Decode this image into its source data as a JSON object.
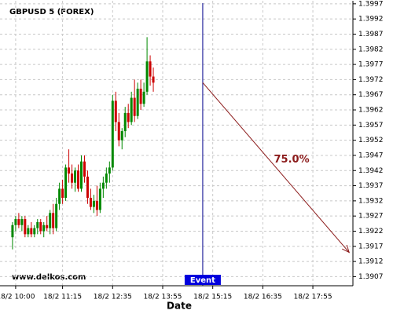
{
  "chart_data": {
    "type": "candlestick",
    "title": "GBPUSD 5 (FOREX)",
    "x_label": "Date",
    "watermark": "www.delkos.com",
    "up_color": "#008800",
    "down_color": "#cc0000",
    "grid": true,
    "x": [
      -5,
      0,
      5,
      10,
      15,
      20,
      25,
      30,
      35,
      40,
      45,
      50,
      55,
      60,
      65,
      70,
      75,
      80,
      85,
      90,
      95,
      100,
      105,
      110,
      115,
      120,
      125,
      130,
      135,
      140,
      145,
      150,
      155,
      160,
      165,
      170,
      175,
      180,
      185,
      190,
      195,
      200,
      205,
      210,
      215,
      220
    ],
    "open": [
      1.392,
      1.3924,
      1.3926,
      1.3924,
      1.3926,
      1.3921,
      1.3923,
      1.3921,
      1.3923,
      1.3925,
      1.3922,
      1.3924,
      1.3923,
      1.3928,
      1.3923,
      1.3931,
      1.3936,
      1.3933,
      1.3943,
      1.3941,
      1.3938,
      1.3942,
      1.3936,
      1.3945,
      1.394,
      1.3933,
      1.393,
      1.3932,
      1.3929,
      1.3936,
      1.3938,
      1.3941,
      1.3943,
      1.3965,
      1.3958,
      1.3952,
      1.3955,
      1.3961,
      1.3958,
      1.3966,
      1.396,
      1.3969,
      1.3964,
      1.3968,
      1.3978,
      1.3973
    ],
    "high": [
      1.3925,
      1.3927,
      1.3928,
      1.3927,
      1.3927,
      1.3924,
      1.3925,
      1.3924,
      1.3926,
      1.3926,
      1.3925,
      1.3927,
      1.3929,
      1.3931,
      1.3933,
      1.3938,
      1.3939,
      1.3944,
      1.3949,
      1.3944,
      1.3943,
      1.3944,
      1.3947,
      1.3947,
      1.3942,
      1.3936,
      1.3934,
      1.3937,
      1.3938,
      1.394,
      1.3943,
      1.3945,
      1.3967,
      1.3968,
      1.3961,
      1.3956,
      1.3963,
      1.3964,
      1.3968,
      1.3972,
      1.3971,
      1.3972,
      1.3971,
      1.3986,
      1.398,
      1.3976
    ],
    "low": [
      1.3916,
      1.3922,
      1.3923,
      1.3922,
      1.392,
      1.392,
      1.392,
      1.392,
      1.3921,
      1.3921,
      1.392,
      1.3922,
      1.3921,
      1.3921,
      1.3922,
      1.3929,
      1.3931,
      1.3932,
      1.3938,
      1.3936,
      1.3935,
      1.3935,
      1.3935,
      1.3938,
      1.3931,
      1.3929,
      1.3928,
      1.3927,
      1.3928,
      1.3933,
      1.3936,
      1.3938,
      1.3942,
      1.3955,
      1.395,
      1.3949,
      1.3953,
      1.3956,
      1.3957,
      1.3958,
      1.3959,
      1.3962,
      1.3963,
      1.3967,
      1.397,
      1.3968
    ],
    "close": [
      1.3924,
      1.3926,
      1.3924,
      1.3926,
      1.3921,
      1.3923,
      1.3921,
      1.3923,
      1.3925,
      1.3922,
      1.3924,
      1.3923,
      1.3928,
      1.3923,
      1.3931,
      1.3936,
      1.3933,
      1.3943,
      1.3941,
      1.3938,
      1.3942,
      1.3936,
      1.3945,
      1.394,
      1.3933,
      1.393,
      1.3932,
      1.3929,
      1.3936,
      1.3938,
      1.3941,
      1.3943,
      1.3965,
      1.3958,
      1.3952,
      1.3955,
      1.3961,
      1.3958,
      1.3966,
      1.396,
      1.3969,
      1.3964,
      1.3968,
      1.3978,
      1.3973,
      1.3971
    ],
    "xlim": [
      -25,
      539
    ],
    "xticks": [
      {
        "value": 0,
        "label": "18/2 10:00"
      },
      {
        "value": 75,
        "label": "18/2 11:15"
      },
      {
        "value": 155,
        "label": "18/2 12:35"
      },
      {
        "value": 235,
        "label": "18/2 13:55"
      },
      {
        "value": 315,
        "label": "18/2 15:15"
      },
      {
        "value": 395,
        "label": "18/2 16:35"
      },
      {
        "value": 475,
        "label": "18/2 17:55"
      }
    ],
    "ylim": [
      1.3904,
      1.3998
    ],
    "yticks": [
      1.3997,
      1.3992,
      1.3987,
      1.3982,
      1.3977,
      1.3972,
      1.3967,
      1.3962,
      1.3957,
      1.3952,
      1.3947,
      1.3942,
      1.3937,
      1.3932,
      1.3927,
      1.3922,
      1.3917,
      1.3912,
      1.3907
    ],
    "event": {
      "x": 299,
      "label": "Event",
      "color": "#00008b",
      "label_color": "#0000dd"
    },
    "forecast": {
      "x": [
        299,
        533
      ],
      "y": [
        1.3971,
        1.3915
      ],
      "label": "75.0%",
      "color": "#8b1a1a"
    }
  }
}
